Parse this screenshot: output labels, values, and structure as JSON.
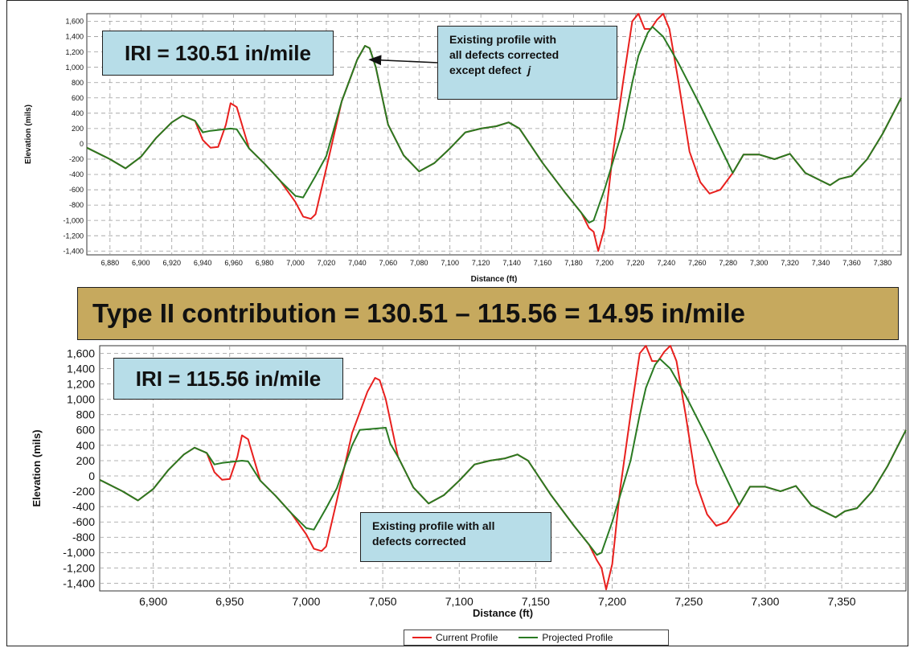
{
  "banner": {
    "text": "Type II contribution = 130.51 – 115.56 = 14.95 in/mile"
  },
  "legend": [
    {
      "label": "Current Profile",
      "color": "#e8201e"
    },
    {
      "label": "Projected Profile",
      "color": "#2a7a22"
    }
  ],
  "chart_data": [
    {
      "type": "line",
      "callout": "IRI = 130.51 in/mile",
      "annotation": [
        "Existing profile with",
        "all defects corrected",
        "except defect j"
      ],
      "xlabel": "Distance (ft)",
      "ylabel": "Elevation (mils)",
      "xlim": [
        6865,
        7392
      ],
      "ylim": [
        -1450,
        1700
      ],
      "grid": true,
      "xticks": [
        6880,
        6900,
        6920,
        6940,
        6960,
        6980,
        7000,
        7020,
        7040,
        7060,
        7080,
        7100,
        7120,
        7140,
        7160,
        7180,
        7200,
        7220,
        7240,
        7260,
        7280,
        7300,
        7320,
        7340,
        7360,
        7380
      ],
      "xtick_labels": [
        "6,880",
        "6,900",
        "6,920",
        "6,940",
        "6,960",
        "6,980",
        "7,000",
        "7,020",
        "7,040",
        "7,060",
        "7,080",
        "7,100",
        "7,120",
        "7,140",
        "7,160",
        "7,180",
        "7,200",
        "7,220",
        "7,240",
        "7,260",
        "7,280",
        "7,300",
        "7,320",
        "7,340",
        "7,360",
        "7,380"
      ],
      "yticks": [
        1600,
        1400,
        1200,
        1000,
        800,
        600,
        400,
        200,
        0,
        -200,
        -400,
        -600,
        -800,
        -1000,
        -1200,
        -1400
      ],
      "ytick_labels": [
        "1,600",
        "1,400",
        "1,200",
        "1,000",
        "800",
        "600",
        "400",
        "200",
        "0",
        "-200",
        "-400",
        "-600",
        "-800",
        "-1,000",
        "-1,200",
        "-1,400"
      ],
      "series": [
        {
          "name": "Current Profile",
          "color": "#e8201e",
          "x": [
            6865,
            6880,
            6890,
            6900,
            6910,
            6920,
            6927,
            6935,
            6940,
            6945,
            6950,
            6955,
            6958,
            6962,
            6970,
            6980,
            6990,
            7000,
            7005,
            7010,
            7013,
            7020,
            7030,
            7040,
            7045,
            7048,
            7052,
            7060,
            7070,
            7080,
            7090,
            7100,
            7110,
            7120,
            7130,
            7138,
            7145,
            7160,
            7175,
            7185,
            7190,
            7193,
            7196,
            7200,
            7205,
            7212,
            7218,
            7222,
            7226,
            7230,
            7234,
            7238,
            7242,
            7248,
            7255,
            7262,
            7268,
            7275,
            7283,
            7290,
            7300,
            7310,
            7320,
            7330,
            7340,
            7346,
            7352,
            7360,
            7370,
            7380,
            7392
          ],
          "y": [
            -50,
            -200,
            -320,
            -170,
            80,
            280,
            370,
            300,
            50,
            -50,
            -40,
            250,
            530,
            480,
            -60,
            -260,
            -480,
            -760,
            -950,
            -980,
            -920,
            -320,
            560,
            1100,
            1280,
            1250,
            1000,
            250,
            -150,
            -360,
            -250,
            -60,
            150,
            200,
            230,
            280,
            200,
            -250,
            -650,
            -900,
            -1100,
            -1150,
            -1400,
            -1100,
            -200,
            800,
            1600,
            1700,
            1500,
            1500,
            1620,
            1700,
            1500,
            800,
            -100,
            -500,
            -650,
            -600,
            -380,
            -140,
            -140,
            -200,
            -130,
            -380,
            -480,
            -540,
            -460,
            -420,
            -200,
            130,
            600
          ]
        },
        {
          "name": "Projected Profile",
          "color": "#2a7a22",
          "x": [
            6865,
            6880,
            6890,
            6900,
            6910,
            6920,
            6927,
            6935,
            6940,
            6945,
            6958,
            6962,
            6970,
            6980,
            6990,
            7000,
            7005,
            7013,
            7020,
            7030,
            7040,
            7045,
            7048,
            7052,
            7060,
            7070,
            7080,
            7090,
            7100,
            7110,
            7120,
            7130,
            7138,
            7145,
            7160,
            7175,
            7185,
            7190,
            7193,
            7200,
            7212,
            7218,
            7222,
            7228,
            7231,
            7238,
            7248,
            7262,
            7283,
            7290,
            7300,
            7310,
            7320,
            7330,
            7340,
            7346,
            7352,
            7360,
            7370,
            7380,
            7392
          ],
          "y": [
            -50,
            -200,
            -320,
            -170,
            80,
            280,
            370,
            300,
            150,
            170,
            200,
            190,
            -60,
            -260,
            -480,
            -680,
            -700,
            -420,
            -160,
            560,
            1100,
            1280,
            1250,
            1000,
            250,
            -150,
            -360,
            -250,
            -60,
            150,
            200,
            230,
            280,
            200,
            -250,
            -650,
            -900,
            -1030,
            -1000,
            -600,
            200,
            800,
            1150,
            1450,
            1530,
            1400,
            1050,
            500,
            -380,
            -140,
            -140,
            -200,
            -130,
            -380,
            -480,
            -540,
            -460,
            -420,
            -200,
            130,
            600
          ]
        }
      ]
    },
    {
      "type": "line",
      "callout": "IRI = 115.56 in/mile",
      "annotation": [
        "Existing profile with all",
        "defects corrected"
      ],
      "xlabel": "Distance (ft)",
      "ylabel": "Elevation (mils)",
      "xlim": [
        6865,
        7392
      ],
      "ylim": [
        -1500,
        1700
      ],
      "grid": true,
      "xticks": [
        6900,
        6950,
        7000,
        7050,
        7100,
        7150,
        7200,
        7250,
        7300,
        7350
      ],
      "xtick_labels": [
        "6,900",
        "6,950",
        "7,000",
        "7,050",
        "7,100",
        "7,150",
        "7,200",
        "7,250",
        "7,300",
        "7,350"
      ],
      "yticks": [
        1600,
        1400,
        1200,
        1000,
        800,
        600,
        400,
        200,
        0,
        -200,
        -400,
        -600,
        -800,
        -1000,
        -1200,
        -1400
      ],
      "ytick_labels": [
        "1,600",
        "1,400",
        "1,200",
        "1,000",
        "800",
        "600",
        "400",
        "200",
        "0",
        "-200",
        "-400",
        "-600",
        "-800",
        "-1,000",
        "-1,200",
        "-1,400"
      ],
      "series": [
        {
          "name": "Current Profile",
          "color": "#e8201e",
          "x": [
            6865,
            6880,
            6890,
            6900,
            6910,
            6920,
            6927,
            6935,
            6940,
            6945,
            6950,
            6955,
            6958,
            6962,
            6970,
            6980,
            6990,
            7000,
            7005,
            7010,
            7013,
            7020,
            7030,
            7040,
            7045,
            7048,
            7052,
            7060,
            7070,
            7080,
            7090,
            7100,
            7110,
            7120,
            7130,
            7138,
            7145,
            7160,
            7175,
            7185,
            7190,
            7193,
            7196,
            7200,
            7205,
            7212,
            7218,
            7222,
            7226,
            7230,
            7234,
            7238,
            7242,
            7248,
            7255,
            7262,
            7268,
            7275,
            7283,
            7290,
            7300,
            7310,
            7320,
            7330,
            7340,
            7346,
            7352,
            7360,
            7370,
            7380,
            7392
          ],
          "y": [
            -50,
            -200,
            -320,
            -170,
            80,
            280,
            370,
            300,
            50,
            -50,
            -40,
            250,
            530,
            480,
            -60,
            -260,
            -480,
            -760,
            -950,
            -980,
            -920,
            -320,
            560,
            1100,
            1280,
            1250,
            1000,
            250,
            -150,
            -360,
            -250,
            -60,
            150,
            200,
            230,
            280,
            200,
            -250,
            -650,
            -900,
            -1100,
            -1200,
            -1480,
            -1150,
            -200,
            800,
            1600,
            1700,
            1500,
            1500,
            1620,
            1700,
            1500,
            800,
            -100,
            -500,
            -650,
            -600,
            -380,
            -140,
            -140,
            -200,
            -130,
            -380,
            -480,
            -540,
            -460,
            -420,
            -200,
            130,
            600
          ]
        },
        {
          "name": "Projected Profile",
          "color": "#2a7a22",
          "x": [
            6865,
            6880,
            6890,
            6900,
            6910,
            6920,
            6927,
            6935,
            6940,
            6945,
            6958,
            6962,
            6970,
            6980,
            6990,
            7000,
            7005,
            7013,
            7020,
            7030,
            7035,
            7052,
            7055,
            7060,
            7070,
            7080,
            7090,
            7100,
            7110,
            7120,
            7130,
            7138,
            7145,
            7160,
            7175,
            7185,
            7190,
            7193,
            7200,
            7212,
            7218,
            7222,
            7228,
            7231,
            7238,
            7248,
            7262,
            7283,
            7290,
            7300,
            7310,
            7320,
            7330,
            7340,
            7346,
            7352,
            7360,
            7370,
            7380,
            7392
          ],
          "y": [
            -50,
            -200,
            -320,
            -170,
            80,
            280,
            370,
            300,
            150,
            170,
            200,
            190,
            -60,
            -260,
            -480,
            -680,
            -700,
            -420,
            -160,
            400,
            600,
            630,
            420,
            250,
            -150,
            -360,
            -250,
            -60,
            150,
            200,
            230,
            280,
            200,
            -250,
            -650,
            -900,
            -1030,
            -1000,
            -600,
            200,
            800,
            1150,
            1450,
            1530,
            1400,
            1050,
            500,
            -380,
            -140,
            -140,
            -200,
            -130,
            -380,
            -480,
            -540,
            -460,
            -420,
            -200,
            130,
            600
          ]
        }
      ]
    }
  ]
}
